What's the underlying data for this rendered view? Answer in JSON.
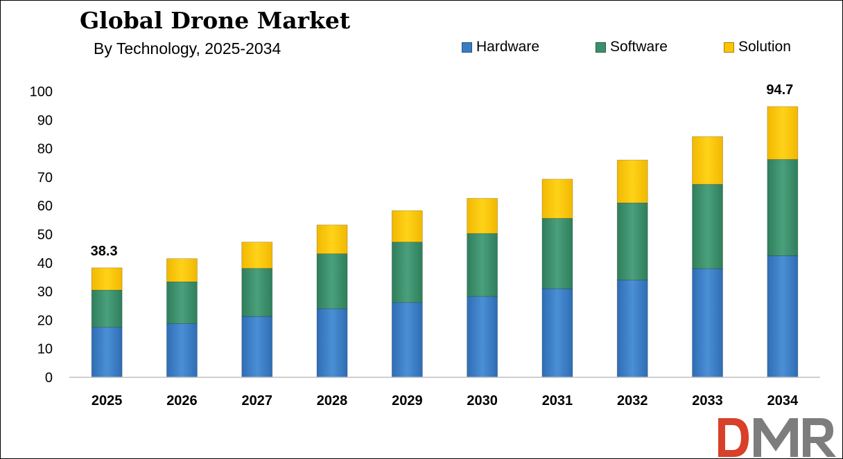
{
  "header": {
    "title": "Global Drone Market",
    "subtitle": "By Technology,  2025-2034"
  },
  "legend": [
    {
      "label": "Hardware",
      "color": "#3a7cc4"
    },
    {
      "label": "Software",
      "color": "#3c8f6b"
    },
    {
      "label": "Solution",
      "color": "#ffc400"
    }
  ],
  "logo": {
    "text": "DMR"
  },
  "chart_data": {
    "type": "bar",
    "stacked": true,
    "categories": [
      "2025",
      "2026",
      "2027",
      "2028",
      "2029",
      "2030",
      "2031",
      "2032",
      "2033",
      "2034"
    ],
    "series": [
      {
        "name": "Hardware",
        "color": "#3a7cc4",
        "values": [
          17.5,
          18.8,
          21.3,
          24.0,
          26.2,
          28.3,
          31.0,
          34.0,
          38.0,
          42.5
        ]
      },
      {
        "name": "Software",
        "color": "#3c8f6b",
        "values": [
          13.0,
          14.6,
          16.8,
          19.2,
          21.1,
          22.0,
          24.6,
          27.0,
          29.5,
          33.7
        ]
      },
      {
        "name": "Solution",
        "color": "#ffc400",
        "values": [
          7.8,
          8.1,
          9.2,
          10.1,
          11.0,
          12.3,
          13.7,
          15.0,
          16.7,
          18.5
        ]
      }
    ],
    "totals_labels": [
      {
        "category": "2025",
        "text": "38.3"
      },
      {
        "category": "2034",
        "text": "94.7"
      }
    ],
    "yticks": [
      "0",
      "10",
      "20",
      "30",
      "40",
      "50",
      "60",
      "70",
      "80",
      "90",
      "100"
    ],
    "ylim": [
      0,
      100
    ],
    "grid": false,
    "legend_position": "top-right"
  }
}
